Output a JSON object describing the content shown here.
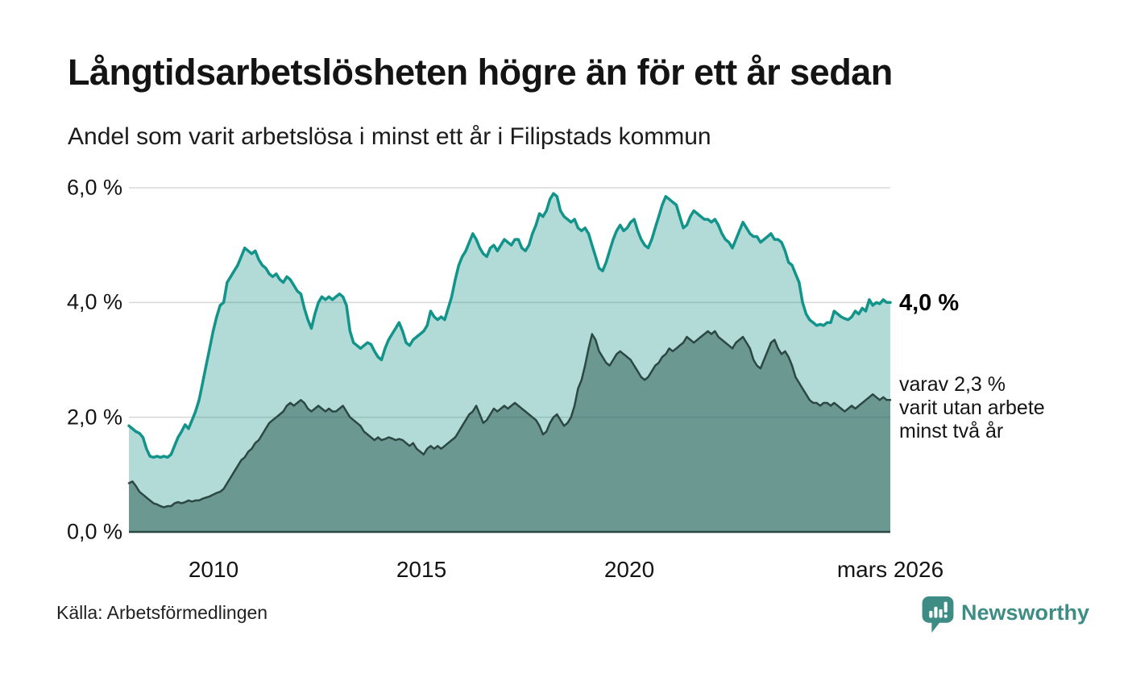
{
  "chart_data": {
    "type": "area",
    "title": "Långtidsarbetslösheten högre än för ett år sedan",
    "subtitle": "Andel som varit arbetslösa i minst ett år i Filipstads kommun",
    "x_start": "2008-02",
    "x_end": "2026-03",
    "x_step_months": 1,
    "xlim": [
      2008.08,
      2026.25
    ],
    "ylim": [
      0,
      6
    ],
    "grid": "horizontal",
    "grid_values": [
      6,
      4,
      2
    ],
    "y_tick_labels": [
      "6,0 %",
      "4,0 %",
      "2,0 %",
      "0,0 %"
    ],
    "x_tick_labels": [
      "2010",
      "2015",
      "2020",
      "mars 2026"
    ],
    "unit": "%",
    "series": [
      {
        "name": "Arbetslösa minst ett år",
        "line_color": "#12948B",
        "fill_color": "rgba(22,146,137,0.33)",
        "latest_value": 4.0,
        "values": [
          1.85,
          1.8,
          1.75,
          1.72,
          1.65,
          1.45,
          1.32,
          1.3,
          1.32,
          1.3,
          1.32,
          1.3,
          1.35,
          1.5,
          1.65,
          1.75,
          1.87,
          1.8,
          1.95,
          2.1,
          2.3,
          2.6,
          2.9,
          3.2,
          3.5,
          3.75,
          3.95,
          4.0,
          4.35,
          4.45,
          4.55,
          4.65,
          4.8,
          4.95,
          4.9,
          4.85,
          4.9,
          4.75,
          4.65,
          4.6,
          4.5,
          4.45,
          4.5,
          4.4,
          4.35,
          4.45,
          4.4,
          4.3,
          4.2,
          4.15,
          3.9,
          3.7,
          3.55,
          3.8,
          4.0,
          4.1,
          4.05,
          4.1,
          4.05,
          4.1,
          4.15,
          4.1,
          3.95,
          3.5,
          3.3,
          3.25,
          3.2,
          3.25,
          3.3,
          3.27,
          3.15,
          3.05,
          3.0,
          3.2,
          3.35,
          3.45,
          3.55,
          3.65,
          3.5,
          3.3,
          3.25,
          3.35,
          3.4,
          3.45,
          3.5,
          3.6,
          3.85,
          3.75,
          3.7,
          3.75,
          3.7,
          3.9,
          4.1,
          4.4,
          4.65,
          4.8,
          4.9,
          5.05,
          5.2,
          5.1,
          4.95,
          4.85,
          4.8,
          4.95,
          5.0,
          4.9,
          5.0,
          5.1,
          5.05,
          5.0,
          5.1,
          5.1,
          4.95,
          4.9,
          5.0,
          5.2,
          5.35,
          5.55,
          5.5,
          5.6,
          5.8,
          5.9,
          5.85,
          5.6,
          5.5,
          5.45,
          5.4,
          5.45,
          5.3,
          5.25,
          5.3,
          5.2,
          5.0,
          4.8,
          4.6,
          4.55,
          4.7,
          4.9,
          5.1,
          5.25,
          5.35,
          5.25,
          5.3,
          5.4,
          5.45,
          5.25,
          5.1,
          5.0,
          4.95,
          5.1,
          5.3,
          5.5,
          5.7,
          5.85,
          5.8,
          5.75,
          5.7,
          5.5,
          5.3,
          5.35,
          5.5,
          5.6,
          5.55,
          5.5,
          5.45,
          5.45,
          5.4,
          5.45,
          5.35,
          5.2,
          5.1,
          5.05,
          4.95,
          5.1,
          5.25,
          5.4,
          5.3,
          5.2,
          5.15,
          5.15,
          5.05,
          5.1,
          5.15,
          5.2,
          5.1,
          5.1,
          5.05,
          4.9,
          4.7,
          4.65,
          4.5,
          4.35,
          4.0,
          3.8,
          3.7,
          3.65,
          3.6,
          3.62,
          3.6,
          3.65,
          3.65,
          3.85,
          3.8,
          3.75,
          3.72,
          3.7,
          3.75,
          3.85,
          3.8,
          3.9,
          3.85,
          4.05,
          3.95,
          4.0,
          3.98,
          4.05,
          4.0,
          4.0
        ]
      },
      {
        "name": "Utan arbete minst två år",
        "line_color": "#2C4843",
        "fill_color": "rgba(45,90,82,0.52)",
        "latest_value": 2.3,
        "values": [
          0.85,
          0.88,
          0.8,
          0.7,
          0.65,
          0.6,
          0.55,
          0.5,
          0.48,
          0.45,
          0.43,
          0.45,
          0.45,
          0.5,
          0.52,
          0.5,
          0.52,
          0.55,
          0.53,
          0.55,
          0.55,
          0.58,
          0.6,
          0.62,
          0.65,
          0.68,
          0.7,
          0.75,
          0.85,
          0.95,
          1.05,
          1.15,
          1.25,
          1.3,
          1.4,
          1.45,
          1.55,
          1.6,
          1.7,
          1.8,
          1.9,
          1.95,
          2.0,
          2.05,
          2.1,
          2.2,
          2.25,
          2.2,
          2.25,
          2.3,
          2.25,
          2.15,
          2.1,
          2.15,
          2.2,
          2.15,
          2.1,
          2.15,
          2.1,
          2.1,
          2.15,
          2.2,
          2.1,
          2.0,
          1.95,
          1.9,
          1.85,
          1.75,
          1.7,
          1.65,
          1.6,
          1.65,
          1.6,
          1.62,
          1.65,
          1.63,
          1.6,
          1.62,
          1.6,
          1.55,
          1.5,
          1.55,
          1.45,
          1.4,
          1.35,
          1.45,
          1.5,
          1.45,
          1.5,
          1.45,
          1.5,
          1.55,
          1.6,
          1.65,
          1.75,
          1.85,
          1.95,
          2.05,
          2.1,
          2.2,
          2.05,
          1.9,
          1.95,
          2.05,
          2.15,
          2.1,
          2.15,
          2.2,
          2.15,
          2.2,
          2.25,
          2.2,
          2.15,
          2.1,
          2.05,
          2.0,
          1.95,
          1.85,
          1.7,
          1.75,
          1.9,
          2.0,
          2.05,
          1.95,
          1.85,
          1.9,
          2.0,
          2.2,
          2.5,
          2.65,
          2.9,
          3.2,
          3.45,
          3.35,
          3.15,
          3.05,
          2.95,
          2.9,
          3.0,
          3.1,
          3.15,
          3.1,
          3.05,
          3.0,
          2.9,
          2.8,
          2.7,
          2.65,
          2.7,
          2.8,
          2.9,
          2.95,
          3.05,
          3.1,
          3.2,
          3.15,
          3.2,
          3.25,
          3.3,
          3.4,
          3.35,
          3.3,
          3.35,
          3.4,
          3.45,
          3.5,
          3.45,
          3.5,
          3.4,
          3.35,
          3.3,
          3.25,
          3.2,
          3.3,
          3.35,
          3.4,
          3.3,
          3.2,
          3.0,
          2.9,
          2.85,
          3.0,
          3.15,
          3.3,
          3.35,
          3.2,
          3.1,
          3.15,
          3.05,
          2.9,
          2.7,
          2.6,
          2.5,
          2.4,
          2.3,
          2.25,
          2.25,
          2.2,
          2.25,
          2.25,
          2.2,
          2.25,
          2.2,
          2.15,
          2.1,
          2.15,
          2.2,
          2.15,
          2.2,
          2.25,
          2.3,
          2.35,
          2.4,
          2.35,
          2.3,
          2.35,
          2.3,
          2.3
        ]
      }
    ],
    "annotations": {
      "latest_total_label": "4,0 %",
      "secondary_lines": [
        "varav 2,3 %",
        "varit utan arbete",
        "minst två år"
      ]
    }
  },
  "footer": {
    "source": "Källa: Arbetsförmedlingen",
    "brand": "Newsworthy"
  },
  "colors": {
    "accent": "#12948B",
    "dark_series": "#2C4843",
    "brand": "#3D8D85",
    "grid": "#D8D8D8",
    "axis_line": "#2C4843"
  }
}
